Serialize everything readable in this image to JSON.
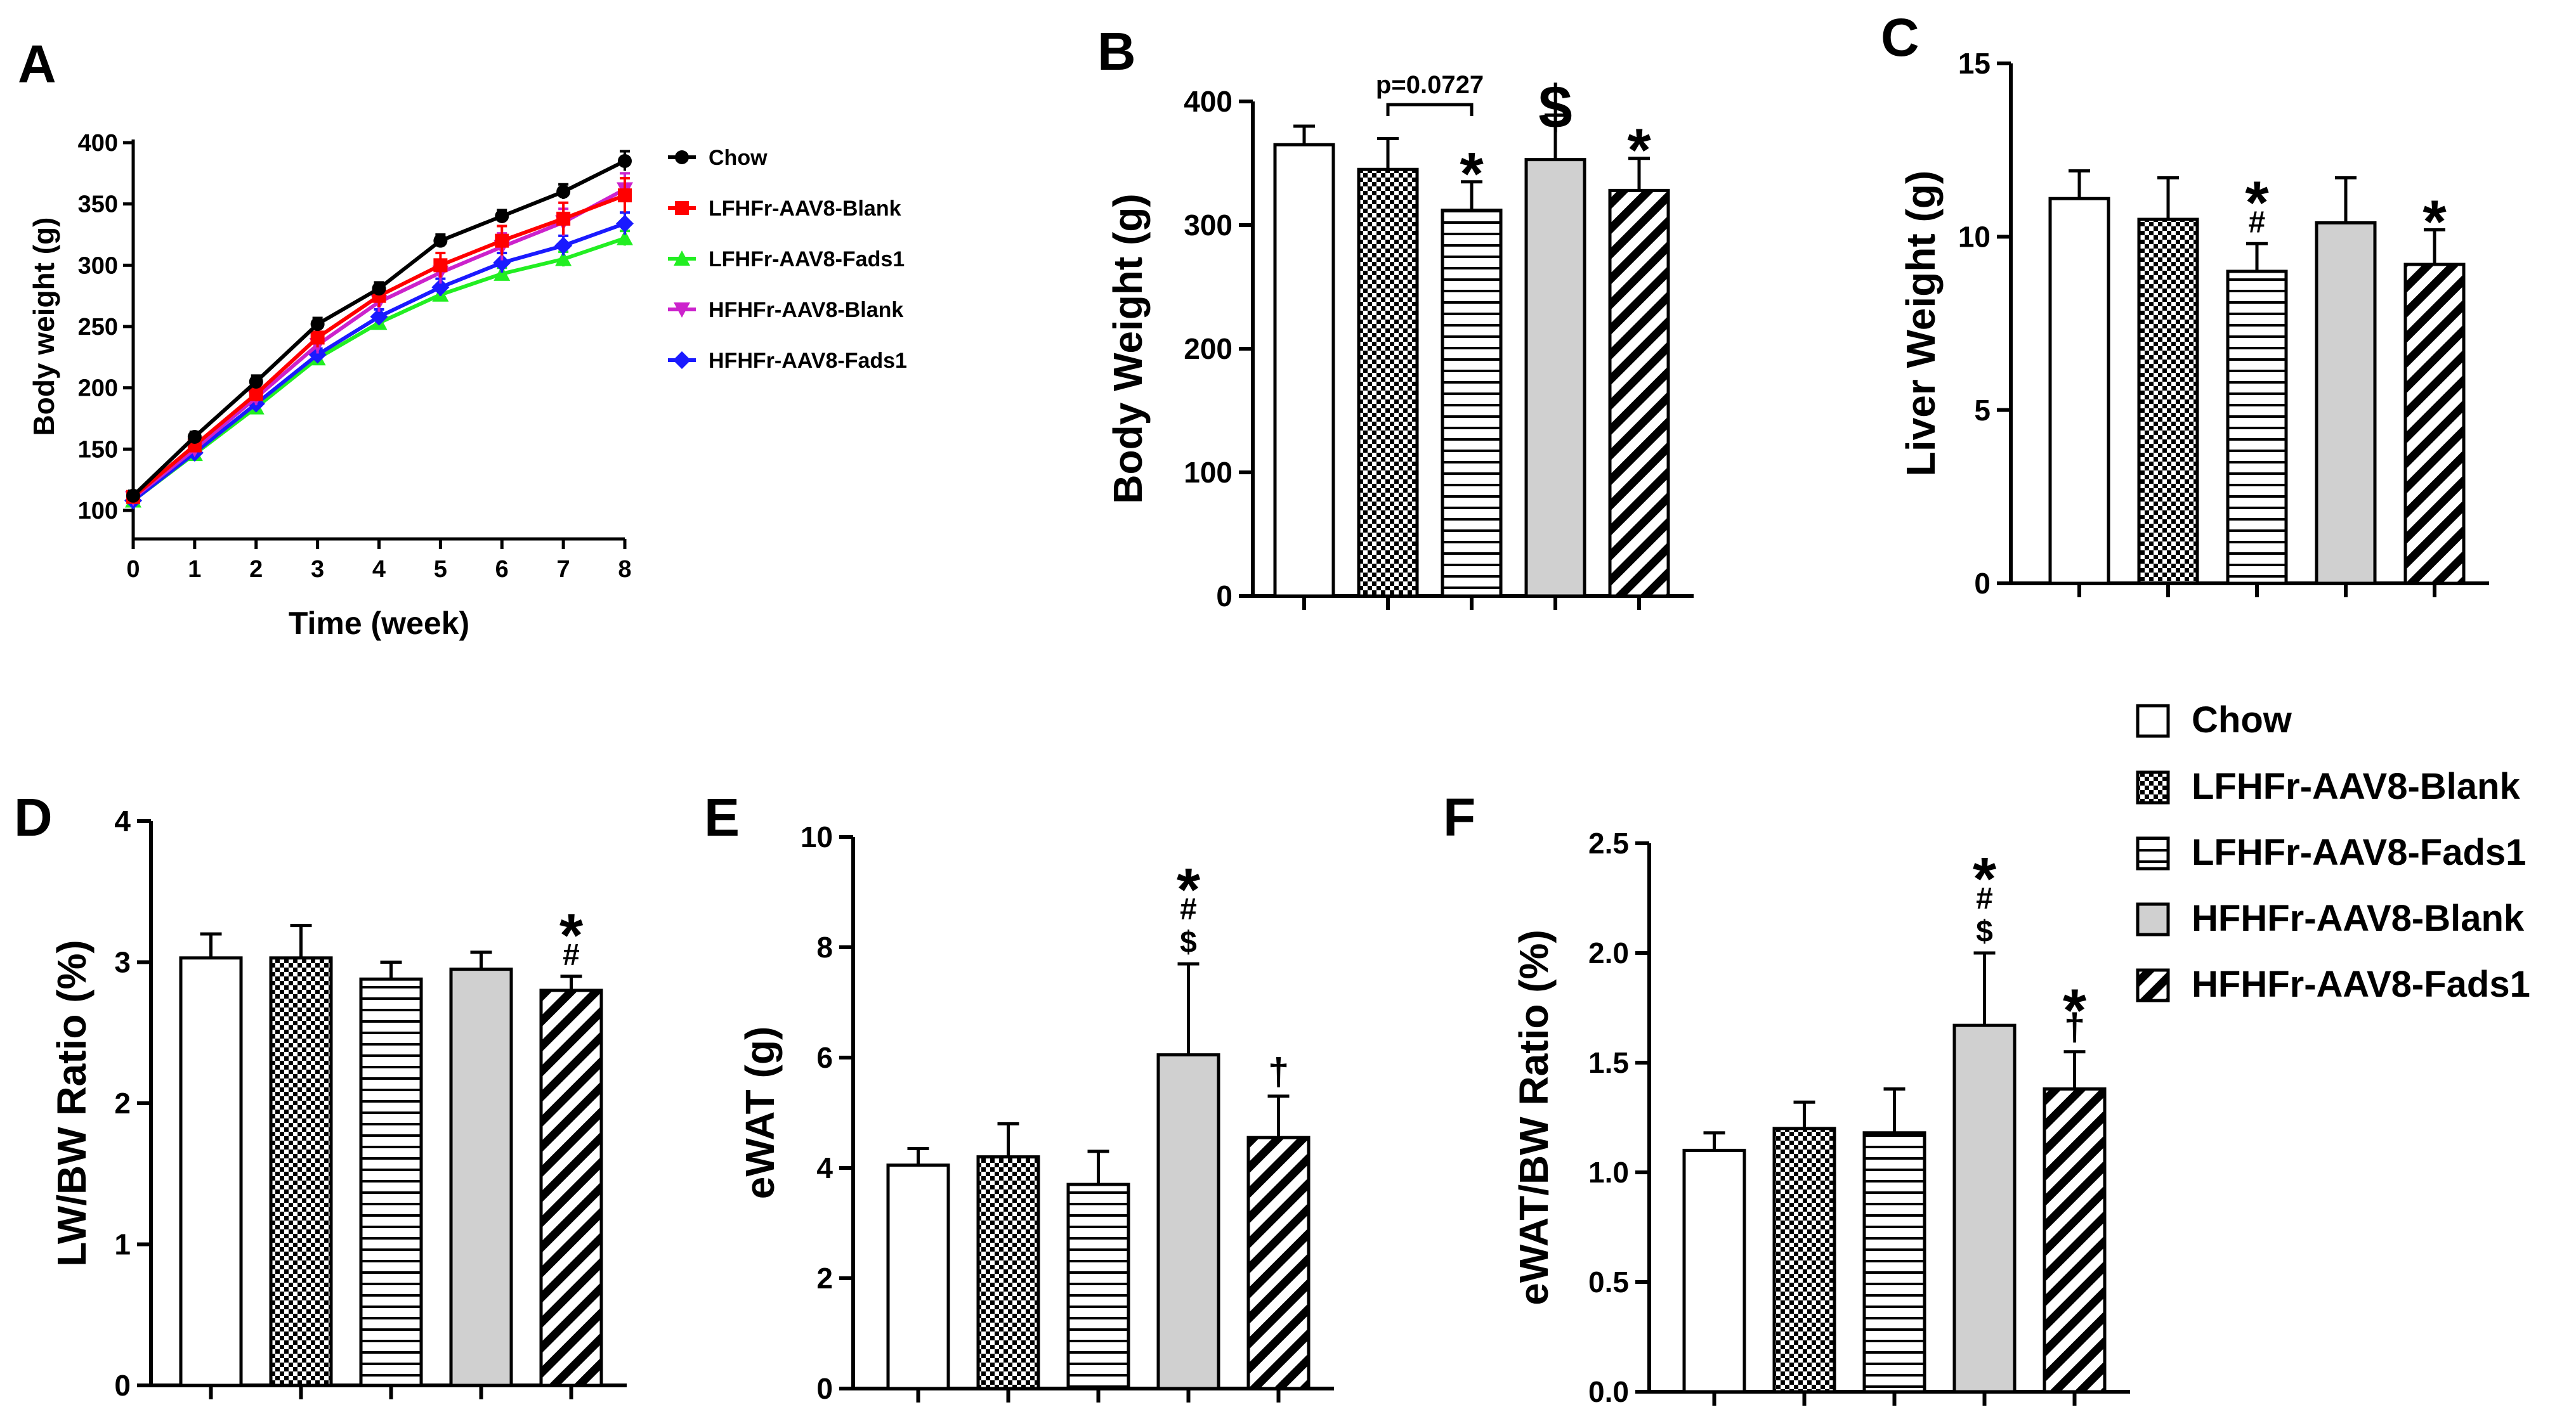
{
  "legend": {
    "items": [
      {
        "label": "Chow",
        "pattern": "white"
      },
      {
        "label": "LFHFr-AAV8-Blank",
        "pattern": "checker"
      },
      {
        "label": "LFHFr-AAV8-Fads1",
        "pattern": "hlines"
      },
      {
        "label": "HFHFr-AAV8-Blank",
        "pattern": "gray"
      },
      {
        "label": "HFHFr-AAV8-Fads1",
        "pattern": "diag"
      }
    ]
  },
  "chart_data": [
    {
      "panel": "A",
      "type": "line",
      "xlabel": "Time (week)",
      "ylabel": "Body weight (g)",
      "x": [
        0,
        1,
        2,
        3,
        4,
        5,
        6,
        7,
        8
      ],
      "xticks": [
        "0",
        "1",
        "2",
        "3",
        "4",
        "5",
        "6",
        "7",
        "8"
      ],
      "yticks": [
        "100",
        "150",
        "200",
        "250",
        "300",
        "350",
        "400"
      ],
      "ylim": [
        100,
        400
      ],
      "legend_placement": "right",
      "series": [
        {
          "name": "Chow",
          "color": "#000000",
          "marker": "circle",
          "values": [
            112,
            160,
            205,
            252,
            281,
            320,
            340,
            360,
            385
          ]
        },
        {
          "name": "LFHFr-AAV8-Blank",
          "color": "#ff0000",
          "marker": "square",
          "values": [
            111,
            153,
            195,
            241,
            275,
            300,
            320,
            338,
            357
          ]
        },
        {
          "name": "LFHFr-AAV8-Fads1",
          "color": "#22ee22",
          "marker": "triangle-up",
          "values": [
            108,
            146,
            184,
            224,
            253,
            276,
            293,
            305,
            322
          ]
        },
        {
          "name": "HFHFr-AAV8-Blank",
          "color": "#cc22cc",
          "marker": "triangle-down",
          "values": [
            110,
            150,
            192,
            235,
            270,
            294,
            315,
            335,
            362
          ]
        },
        {
          "name": "HFHFr-AAV8-Fads1",
          "color": "#1a1aff",
          "marker": "diamond",
          "values": [
            108,
            147,
            187,
            227,
            258,
            282,
            302,
            316,
            334
          ]
        }
      ],
      "errors": [
        [
          4,
          4,
          5,
          5,
          5,
          5,
          5,
          6,
          8
        ],
        [
          4,
          5,
          6,
          8,
          9,
          10,
          12,
          13,
          14
        ],
        [
          3,
          3,
          4,
          4,
          5,
          5,
          5,
          6,
          6
        ],
        [
          3,
          4,
          6,
          7,
          8,
          9,
          11,
          11,
          13
        ],
        [
          3,
          3,
          4,
          5,
          6,
          7,
          8,
          8,
          9
        ]
      ]
    },
    {
      "panel": "B",
      "type": "bar",
      "ylabel": "Body Weight (g)",
      "categories": [
        "Chow",
        "LFHFr-AAV8-Blank",
        "LFHFr-AAV8-Fads1",
        "HFHFr-AAV8-Blank",
        "HFHFr-AAV8-Fads1"
      ],
      "values": [
        365,
        345,
        312,
        353,
        328
      ],
      "errors": [
        15,
        25,
        23,
        36,
        26
      ],
      "yticks": [
        "0",
        "100",
        "200",
        "300",
        "400"
      ],
      "ylim": [
        0,
        400
      ],
      "annotations": [
        [
          "",
          "",
          "",
          ""
        ],
        [
          "",
          "",
          "",
          ""
        ],
        [
          "*",
          "",
          "",
          ""
        ],
        [
          "$",
          "",
          "",
          ""
        ],
        [
          "*",
          "",
          "",
          ""
        ]
      ],
      "bracket": {
        "from": 1,
        "to": 2,
        "label": "p=0.0727"
      }
    },
    {
      "panel": "C",
      "type": "bar",
      "ylabel": "Liver Weight (g)",
      "categories": [
        "Chow",
        "LFHFr-AAV8-Blank",
        "LFHFr-AAV8-Fads1",
        "HFHFr-AAV8-Blank",
        "HFHFr-AAV8-Fads1"
      ],
      "values": [
        11.1,
        10.5,
        9.0,
        10.4,
        9.2
      ],
      "errors": [
        0.8,
        1.2,
        0.8,
        1.3,
        1.0
      ],
      "yticks": [
        "0",
        "5",
        "10",
        "15"
      ],
      "ylim": [
        0,
        15
      ],
      "annotations": [
        [
          "",
          "",
          "",
          ""
        ],
        [
          "",
          "",
          "",
          ""
        ],
        [
          "*",
          "#",
          "",
          ""
        ],
        [
          "",
          "",
          "",
          ""
        ],
        [
          "*",
          "",
          "",
          ""
        ]
      ]
    },
    {
      "panel": "D",
      "type": "bar",
      "ylabel": "LW/BW Ratio (%)",
      "categories": [
        "Chow",
        "LFHFr-AAV8-Blank",
        "LFHFr-AAV8-Fads1",
        "HFHFr-AAV8-Blank",
        "HFHFr-AAV8-Fads1"
      ],
      "values": [
        3.03,
        3.03,
        2.88,
        2.95,
        2.8
      ],
      "errors": [
        0.17,
        0.23,
        0.12,
        0.12,
        0.1
      ],
      "yticks": [
        "0",
        "1",
        "2",
        "3",
        "4"
      ],
      "ylim": [
        0,
        4
      ],
      "annotations": [
        [
          "",
          "",
          "",
          ""
        ],
        [
          "",
          "",
          "",
          ""
        ],
        [
          "",
          "",
          "",
          ""
        ],
        [
          "",
          "",
          "",
          ""
        ],
        [
          "*",
          "#",
          "",
          ""
        ]
      ]
    },
    {
      "panel": "E",
      "type": "bar",
      "ylabel": "eWAT (g)",
      "categories": [
        "Chow",
        "LFHFr-AAV8-Blank",
        "LFHFr-AAV8-Fads1",
        "HFHFr-AAV8-Blank",
        "HFHFr-AAV8-Fads1"
      ],
      "values": [
        4.05,
        4.2,
        3.7,
        6.05,
        4.55
      ],
      "errors": [
        0.3,
        0.6,
        0.6,
        1.65,
        0.75
      ],
      "yticks": [
        "0",
        "2",
        "4",
        "6",
        "8",
        "10"
      ],
      "ylim": [
        0,
        10
      ],
      "annotations": [
        [
          "",
          "",
          "",
          ""
        ],
        [
          "",
          "",
          "",
          ""
        ],
        [
          "",
          "",
          "",
          ""
        ],
        [
          "*",
          "#",
          "$",
          ""
        ],
        [
          "",
          "",
          "",
          "†"
        ]
      ]
    },
    {
      "panel": "F",
      "type": "bar",
      "ylabel": "eWAT/BW Ratio (%)",
      "categories": [
        "Chow",
        "LFHFr-AAV8-Blank",
        "LFHFr-AAV8-Fads1",
        "HFHFr-AAV8-Blank",
        "HFHFr-AAV8-Fads1"
      ],
      "values": [
        1.1,
        1.2,
        1.18,
        1.67,
        1.38
      ],
      "errors": [
        0.08,
        0.12,
        0.2,
        0.33,
        0.17
      ],
      "yticks": [
        "0.0",
        "0.5",
        "1.0",
        "1.5",
        "2.0",
        "2.5"
      ],
      "ylim": [
        0,
        2.5
      ],
      "annotations": [
        [
          "",
          "",
          "",
          ""
        ],
        [
          "",
          "",
          "",
          ""
        ],
        [
          "",
          "",
          "",
          ""
        ],
        [
          "*",
          "#",
          "$",
          ""
        ],
        [
          "*",
          "",
          "",
          "†"
        ]
      ]
    }
  ]
}
